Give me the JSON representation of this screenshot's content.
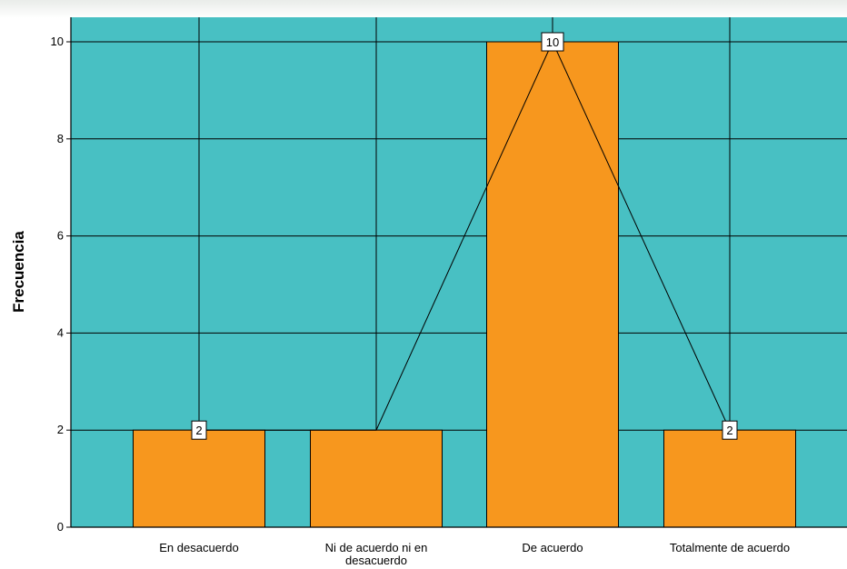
{
  "chart_data": {
    "type": "bar",
    "categories": [
      "En desacuerdo",
      "Ni de acuerdo ni en desacuerdo",
      "De acuerdo",
      "Totalmente de acuerdo"
    ],
    "category_label_lines": [
      [
        "En desacuerdo"
      ],
      [
        "Ni de acuerdo ni en",
        "desacuerdo"
      ],
      [
        "De acuerdo"
      ],
      [
        "Totalmente de acuerdo"
      ]
    ],
    "values": [
      2,
      2,
      10,
      2
    ],
    "data_labels": [
      "2",
      "",
      "10",
      "2"
    ],
    "ylabel": "Frecuencia",
    "ylim": [
      0,
      10
    ],
    "yticks": [
      0,
      2,
      4,
      6,
      8,
      10
    ],
    "grid": true,
    "polygon_line": true,
    "colors": {
      "plot_background": "#48c0c3",
      "bar_fill": "#f7971e",
      "bar_stroke": "#000000",
      "grid": "#000000",
      "line": "#000000"
    }
  }
}
